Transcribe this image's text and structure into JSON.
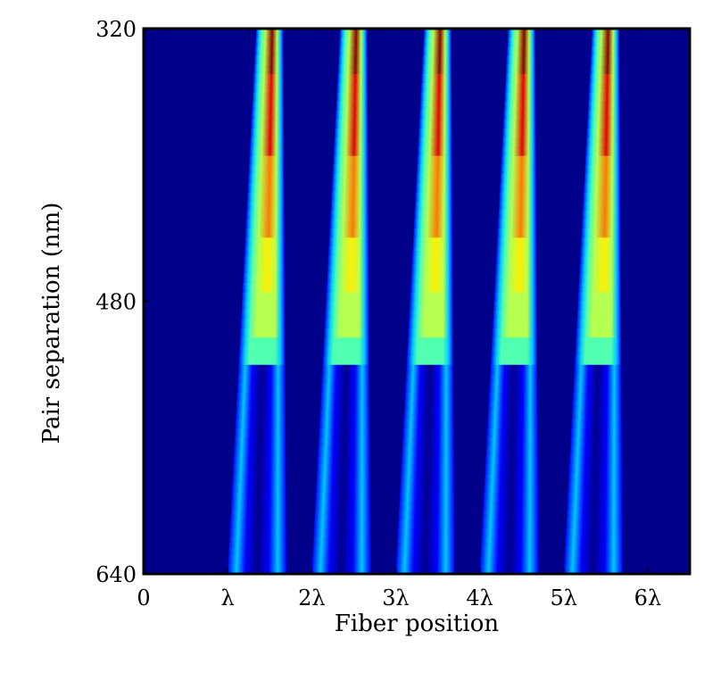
{
  "chart_data": {
    "type": "heatmap",
    "title": "",
    "xlabel": "Fiber position",
    "ylabel": "Pair separation (nm)",
    "x_ticks": [
      {
        "value": 0,
        "label": "0"
      },
      {
        "value": 1,
        "label": "λ"
      },
      {
        "value": 2,
        "label": "2λ"
      },
      {
        "value": 3,
        "label": "3λ"
      },
      {
        "value": 4,
        "label": "4λ"
      },
      {
        "value": 5,
        "label": "5λ"
      },
      {
        "value": 6,
        "label": "6λ"
      }
    ],
    "y_ticks": [
      {
        "value": 320,
        "label": "320"
      },
      {
        "value": 480,
        "label": "480"
      },
      {
        "value": 640,
        "label": "640"
      }
    ],
    "xlim": [
      0,
      6.5
    ],
    "ylim": [
      640,
      320
    ],
    "colormap": "jet",
    "colormap_colors": [
      "#00008b",
      "#0000ff",
      "#00c8ff",
      "#50ffb0",
      "#b4ff50",
      "#ffee00",
      "#ff7800",
      "#e60000",
      "#8b0000"
    ],
    "bands": [
      {
        "center": 1.5,
        "peak_value": 1.0
      },
      {
        "center": 2.5,
        "peak_value": 1.0
      },
      {
        "center": 3.5,
        "peak_value": 1.0
      },
      {
        "center": 4.5,
        "peak_value": 1.0
      },
      {
        "center": 5.5,
        "peak_value": 1.0
      }
    ],
    "band_edges_at_top": [
      -0.16,
      0.16
    ],
    "band_edges_at_bottom": [
      -0.5,
      0.2
    ],
    "value_range": [
      0,
      1
    ]
  }
}
